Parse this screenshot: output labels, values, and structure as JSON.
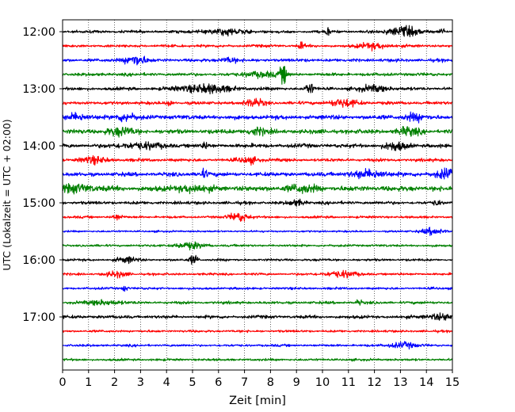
{
  "chart_data": {
    "type": "line",
    "title": "",
    "xlabel": "Zeit  [min]",
    "ylabel": "UTC (Lokalzeit = UTC + 02:00)",
    "xlim": [
      0,
      15
    ],
    "x_ticks": [
      0,
      1,
      2,
      3,
      4,
      5,
      6,
      7,
      8,
      9,
      10,
      11,
      12,
      13,
      14,
      15
    ],
    "x_tick_labels": [
      "0",
      "1",
      "2",
      "3",
      "4",
      "5",
      "6",
      "7",
      "8",
      "9",
      "10",
      "11",
      "12",
      "13",
      "14",
      "15"
    ],
    "y_tick_labels": [
      "12:00",
      "13:00",
      "14:00",
      "15:00",
      "16:00",
      "17:00"
    ],
    "grid": "vertical dotted",
    "color_cycle": [
      "#000000",
      "#ff0000",
      "#0000ff",
      "#008000"
    ],
    "traces": [
      {
        "start": "12:00",
        "color": "#000000",
        "amp": 0.7,
        "events": [
          [
            6.3,
            0.8,
            1.6
          ],
          [
            10.2,
            0.1,
            2.0
          ],
          [
            13.1,
            0.6,
            2.8
          ],
          [
            14.6,
            0.1,
            2.2
          ]
        ]
      },
      {
        "start": "12:15",
        "color": "#ff0000",
        "amp": 0.7,
        "events": [
          [
            9.2,
            0.1,
            2.2
          ],
          [
            12.0,
            0.6,
            1.6
          ]
        ]
      },
      {
        "start": "12:30",
        "color": "#0000ff",
        "amp": 0.8,
        "events": [
          [
            2.8,
            0.4,
            3.2
          ],
          [
            6.4,
            0.3,
            1.5
          ]
        ]
      },
      {
        "start": "12:45",
        "color": "#008000",
        "amp": 0.8,
        "events": [
          [
            8.5,
            0.15,
            5.0
          ],
          [
            7.6,
            0.6,
            1.6
          ]
        ]
      },
      {
        "start": "13:00",
        "color": "#000000",
        "amp": 0.8,
        "events": [
          [
            5.5,
            1.0,
            2.4
          ],
          [
            9.5,
            0.15,
            3.5
          ],
          [
            12.0,
            0.6,
            1.6
          ]
        ]
      },
      {
        "start": "13:15",
        "color": "#ff0000",
        "amp": 0.8,
        "events": [
          [
            7.4,
            0.4,
            2.0
          ],
          [
            10.8,
            0.6,
            2.0
          ],
          [
            4.1,
            0.1,
            1.8
          ]
        ]
      },
      {
        "start": "13:30",
        "color": "#0000ff",
        "amp": 1.1,
        "events": [
          [
            0.5,
            0.4,
            1.8
          ],
          [
            2.4,
            0.4,
            2.0
          ],
          [
            13.5,
            0.4,
            1.8
          ]
        ]
      },
      {
        "start": "13:45",
        "color": "#008000",
        "amp": 1.1,
        "events": [
          [
            2.2,
            0.6,
            2.0
          ],
          [
            7.4,
            0.4,
            1.8
          ],
          [
            13.3,
            0.4,
            2.0
          ]
        ]
      },
      {
        "start": "14:00",
        "color": "#000000",
        "amp": 1.0,
        "events": [
          [
            3.0,
            0.8,
            1.6
          ],
          [
            12.8,
            0.4,
            2.4
          ],
          [
            5.5,
            0.1,
            1.8
          ]
        ]
      },
      {
        "start": "14:15",
        "color": "#ff0000",
        "amp": 0.8,
        "events": [
          [
            1.2,
            0.5,
            1.8
          ],
          [
            7.2,
            0.4,
            1.6
          ]
        ]
      },
      {
        "start": "14:30",
        "color": "#0000ff",
        "amp": 1.0,
        "events": [
          [
            5.4,
            0.2,
            2.2
          ],
          [
            11.8,
            0.8,
            2.0
          ],
          [
            14.7,
            0.4,
            2.8
          ]
        ]
      },
      {
        "start": "14:45",
        "color": "#008000",
        "amp": 1.3,
        "events": [
          [
            0.6,
            0.6,
            2.0
          ],
          [
            5.0,
            0.6,
            1.8
          ],
          [
            9.2,
            0.6,
            1.8
          ]
        ]
      },
      {
        "start": "15:00",
        "color": "#000000",
        "amp": 0.8,
        "events": [
          [
            9.0,
            0.3,
            1.6
          ],
          [
            14.4,
            0.1,
            2.0
          ]
        ]
      },
      {
        "start": "15:15",
        "color": "#ff0000",
        "amp": 0.6,
        "events": [
          [
            6.8,
            0.4,
            2.6
          ],
          [
            2.1,
            0.2,
            1.6
          ]
        ]
      },
      {
        "start": "15:30",
        "color": "#0000ff",
        "amp": 0.5,
        "events": [
          [
            14.2,
            0.4,
            2.0
          ]
        ]
      },
      {
        "start": "15:45",
        "color": "#008000",
        "amp": 0.6,
        "events": [
          [
            4.9,
            0.6,
            1.6
          ]
        ]
      },
      {
        "start": "16:00",
        "color": "#000000",
        "amp": 0.6,
        "events": [
          [
            5.05,
            0.15,
            3.2
          ],
          [
            2.5,
            0.4,
            1.6
          ]
        ]
      },
      {
        "start": "16:15",
        "color": "#ff0000",
        "amp": 0.6,
        "events": [
          [
            10.7,
            0.6,
            1.8
          ],
          [
            2.1,
            0.4,
            1.6
          ]
        ]
      },
      {
        "start": "16:30",
        "color": "#0000ff",
        "amp": 0.6,
        "events": [
          [
            2.4,
            0.1,
            2.2
          ]
        ]
      },
      {
        "start": "16:45",
        "color": "#008000",
        "amp": 0.7,
        "events": [
          [
            11.4,
            0.1,
            1.8
          ],
          [
            1.6,
            0.6,
            1.4
          ]
        ]
      },
      {
        "start": "17:00",
        "color": "#000000",
        "amp": 0.8,
        "events": [
          [
            14.6,
            0.6,
            1.6
          ]
        ]
      },
      {
        "start": "17:15",
        "color": "#ff0000",
        "amp": 0.6,
        "events": []
      },
      {
        "start": "17:30",
        "color": "#0000ff",
        "amp": 0.6,
        "events": [
          [
            13.1,
            0.5,
            1.6
          ]
        ]
      },
      {
        "start": "17:45",
        "color": "#008000",
        "amp": 0.6,
        "events": []
      }
    ]
  }
}
